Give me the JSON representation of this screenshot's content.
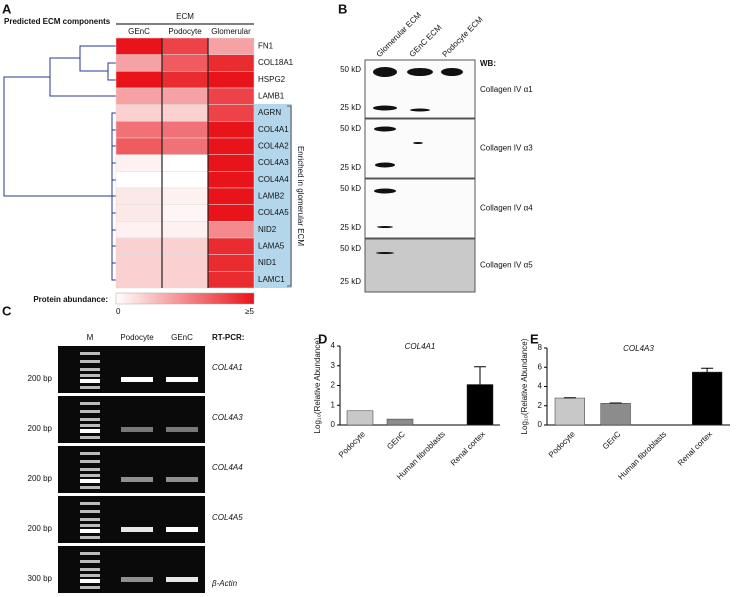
{
  "panel_a": {
    "label": "A",
    "title": "Predicted ECM components",
    "group_label": "ECM",
    "columns": [
      "GEnC",
      "Podocyte",
      "Glomerular"
    ],
    "rows": [
      {
        "label": "FN1",
        "values": [
          5,
          4,
          2
        ]
      },
      {
        "label": "COL18A1",
        "values": [
          2,
          3.5,
          4.5
        ]
      },
      {
        "label": "HSPG2",
        "values": [
          5,
          4.5,
          5
        ]
      },
      {
        "label": "LAMB1",
        "values": [
          2,
          2,
          4
        ]
      },
      {
        "label": "AGRN",
        "values": [
          1,
          1,
          4
        ]
      },
      {
        "label": "COL4A1",
        "values": [
          3,
          3,
          5
        ]
      },
      {
        "label": "COL4A2",
        "values": [
          3.5,
          3,
          5
        ]
      },
      {
        "label": "COL4A3",
        "values": [
          0.3,
          0,
          5
        ]
      },
      {
        "label": "COL4A4",
        "values": [
          0,
          0,
          5
        ]
      },
      {
        "label": "LAMB2",
        "values": [
          0.5,
          0.3,
          5
        ]
      },
      {
        "label": "COL4A5",
        "values": [
          0.5,
          0.2,
          5
        ]
      },
      {
        "label": "NID2",
        "values": [
          0.3,
          0.3,
          2.5
        ]
      },
      {
        "label": "LAMA5",
        "values": [
          1,
          1,
          4.5
        ]
      },
      {
        "label": "NID1",
        "values": [
          1,
          1,
          4.5
        ]
      },
      {
        "label": "LAMC1",
        "values": [
          1,
          1,
          4.5
        ]
      }
    ],
    "bracket_label": "Enriched in glomerular ECM",
    "legend": {
      "title": "Protein abundance:",
      "lim": [
        0,
        5
      ],
      "ticks": [
        0,
        {
          "value": 5,
          "label": "≥5"
        }
      ]
    }
  },
  "panel_b": {
    "label": "B",
    "lanes": [
      "Glomerular ECM",
      "GEnC ECM",
      "Podocyte ECM"
    ],
    "wb_label": "WB:",
    "blots": [
      {
        "markers": [
          "50 kD",
          "25 kD"
        ],
        "antibody": "Collagen IV α1"
      },
      {
        "markers": [
          "50 kD",
          "25 kD"
        ],
        "antibody": "Collagen IV α3"
      },
      {
        "markers": [
          "50 kD",
          "25 kD"
        ],
        "antibody": "Collagen IV α4"
      },
      {
        "markers": [
          "50 kD",
          "25 kD"
        ],
        "antibody": "Collagen IV α5"
      }
    ]
  },
  "panel_c": {
    "label": "C",
    "lanes": [
      "M",
      "Podocyte",
      "GEnC"
    ],
    "method": "RT-PCR:",
    "rows": [
      {
        "marker": "200 bp",
        "gene": "COL4A1"
      },
      {
        "marker": "200 bp",
        "gene": "COL4A3"
      },
      {
        "marker": "200 bp",
        "gene": "COL4A4"
      },
      {
        "marker": "200 bp",
        "gene": "COL4A5"
      },
      {
        "marker": "300 bp",
        "gene": "β-Actin"
      }
    ]
  },
  "chart_data": [
    {
      "type": "bar",
      "panel_label": "D",
      "title": "COL4A1",
      "y_label": "Log₁₀(Relative Abundance)",
      "categories": [
        "Podocyte",
        "GEnC",
        "Human fibroblasts",
        "Renal cortex"
      ],
      "values": [
        0.72,
        0.3,
        0,
        2.05
      ],
      "errors": [
        null,
        null,
        null,
        0.9
      ],
      "colors": [
        "#c8c8c8",
        "#8c8c8c",
        "#666666",
        "#000000"
      ],
      "ylim": [
        0,
        4
      ],
      "yticks": [
        0,
        1,
        2,
        3,
        4
      ]
    },
    {
      "type": "bar",
      "panel_label": "E",
      "title": "COL4A3",
      "y_label": "Log₁₀(Relative Abundance)",
      "categories": [
        "Podocyte",
        "GEnC",
        "Human fibroblasts",
        "Renal cortex"
      ],
      "values": [
        2.8,
        2.25,
        0,
        5.5
      ],
      "errors": [
        0.03,
        0.04,
        null,
        0.4
      ],
      "colors": [
        "#c8c8c8",
        "#8c8c8c",
        "#666666",
        "#000000"
      ],
      "ylim": [
        0,
        8
      ],
      "yticks": [
        0,
        2,
        4,
        6,
        8
      ]
    }
  ]
}
